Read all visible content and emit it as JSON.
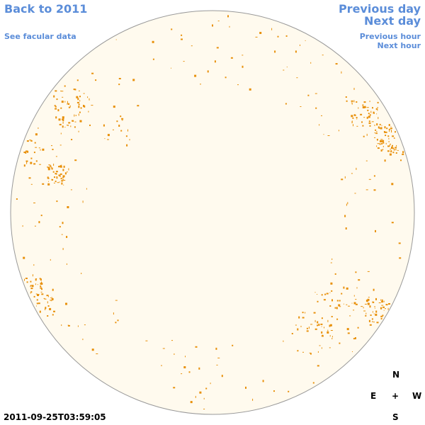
{
  "links": {
    "back": "Back to 2011",
    "facular": "See facular data",
    "previous_day": "Previous day",
    "next_day": "Next day",
    "previous_hour": "Previous hour",
    "next_hour": "Next hour"
  },
  "timestamp": "2011-09-25T03:59:05",
  "compass": {
    "north": "N",
    "east": "E",
    "center": "+",
    "west": "W",
    "south": "S"
  }
}
